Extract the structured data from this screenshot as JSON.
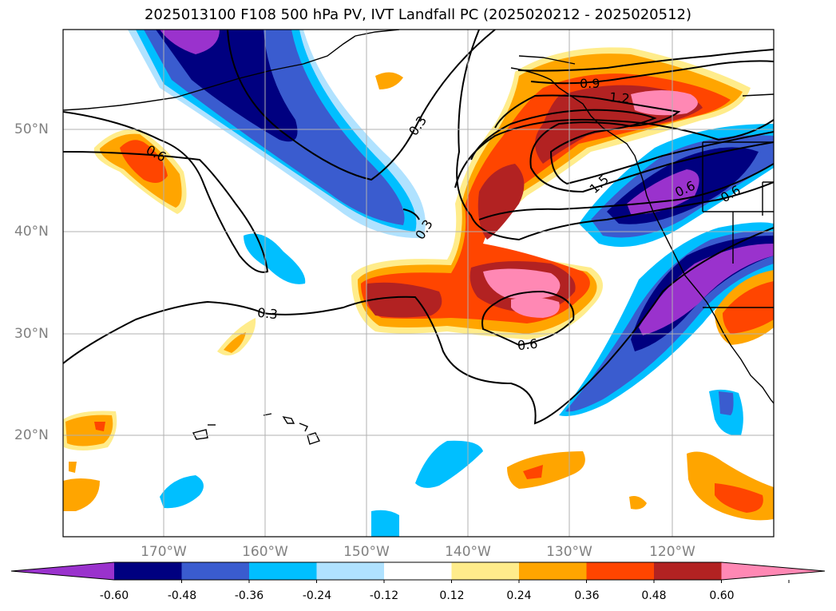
{
  "title": "2025013100 F108 500 hPa PV, IVT Landfall PC (2025020212 - 2025020512)",
  "map": {
    "projection": "PlateCarree",
    "lon_range": [
      -180,
      -110
    ],
    "lat_range": [
      10,
      60
    ],
    "gridlines": true,
    "lat_ticks": [
      "50°N",
      "40°N",
      "30°N",
      "20°N"
    ],
    "lon_ticks": [
      "170°W",
      "160°W",
      "150°W",
      "140°W",
      "130°W",
      "120°W"
    ],
    "shading_variable": "IVT Landfall PC",
    "contour_variable": "500 hPa PV",
    "contour_labels": [
      "0.6",
      "0.3",
      "0.3",
      "0.3",
      "0.9",
      "1.2",
      "1.5",
      "0.6",
      "0.6",
      "0.6"
    ]
  },
  "colorbar": {
    "ticks": [
      "-0.60",
      "-0.48",
      "-0.36",
      "-0.24",
      "-0.12",
      "0.12",
      "0.24",
      "0.36",
      "0.48",
      "0.60"
    ],
    "levels": [
      -0.6,
      -0.48,
      -0.36,
      -0.24,
      -0.12,
      0.12,
      0.24,
      0.36,
      0.48,
      0.6
    ],
    "colors": [
      "#9a32cd",
      "#000080",
      "#3a5ccf",
      "#00bfff",
      "#b0e2ff",
      "#ffffff",
      "#ffec8b",
      "#ffa500",
      "#ff4500",
      "#b22222",
      "#ff88b4"
    ],
    "extend": "both"
  }
}
